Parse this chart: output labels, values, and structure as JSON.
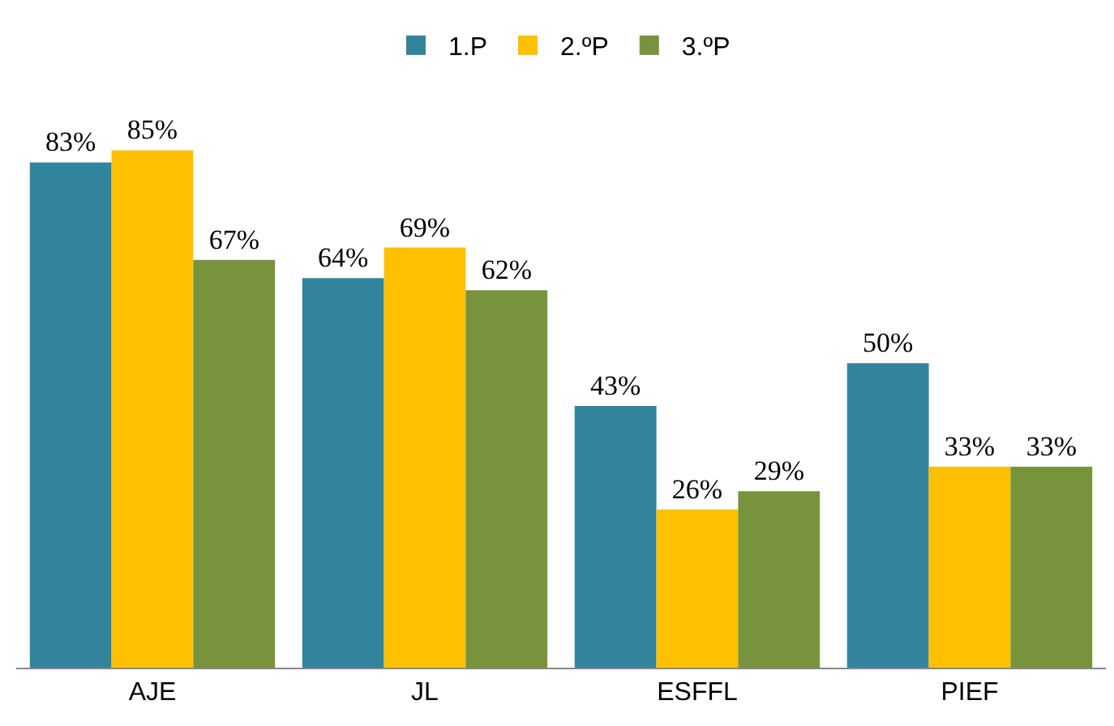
{
  "chart_data": {
    "type": "bar",
    "categories": [
      "AJE",
      "JL",
      "ESFFL",
      "PIEF"
    ],
    "series": [
      {
        "name": "1.P",
        "color": "#31849b",
        "values": [
          83,
          64,
          43,
          50
        ],
        "value_labels": [
          "83%",
          "64%",
          "43%",
          "50%"
        ]
      },
      {
        "name": "2.ºP",
        "color": "#ffc000",
        "values": [
          85,
          69,
          26,
          33
        ],
        "value_labels": [
          "85%",
          "69%",
          "26%",
          "33%"
        ]
      },
      {
        "name": "3.ºP",
        "color": "#77933c",
        "values": [
          67,
          62,
          29,
          33
        ],
        "value_labels": [
          "67%",
          "62%",
          "29%",
          "33%"
        ]
      }
    ],
    "legend": "top"
  }
}
